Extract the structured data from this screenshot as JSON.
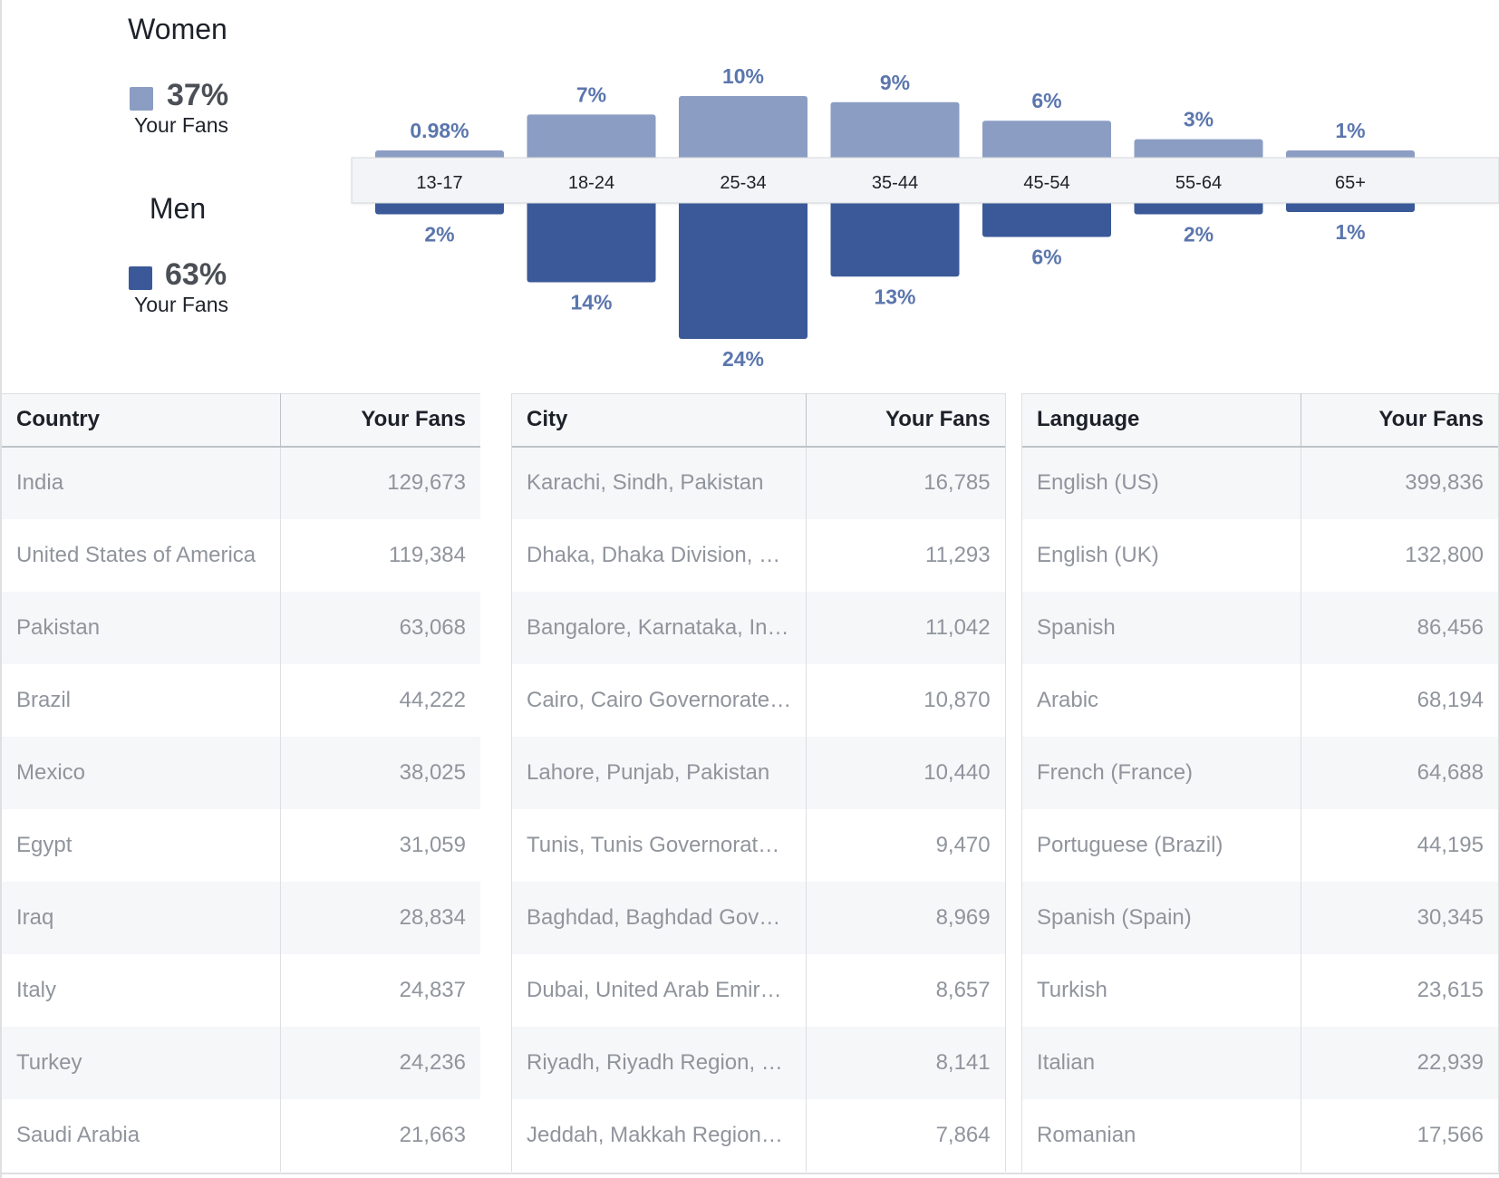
{
  "legend": {
    "women": {
      "title": "Women",
      "pct": "37%",
      "sub": "Your Fans",
      "color": "#8b9dc3"
    },
    "men": {
      "title": "Men",
      "pct": "63%",
      "sub": "Your Fans",
      "color": "#3b5998"
    }
  },
  "chart_data": {
    "type": "bar",
    "categories": [
      "13-17",
      "18-24",
      "25-34",
      "35-44",
      "45-54",
      "55-64",
      "65+"
    ],
    "series": [
      {
        "name": "Women",
        "values": [
          0.98,
          7,
          10,
          9,
          6,
          3,
          1
        ],
        "labels": [
          "0.98%",
          "7%",
          "10%",
          "9%",
          "6%",
          "3%",
          "1%"
        ],
        "color": "#8b9dc3"
      },
      {
        "name": "Men",
        "values": [
          2,
          14,
          24,
          13,
          6,
          2,
          1
        ],
        "labels": [
          "2%",
          "14%",
          "24%",
          "13%",
          "6%",
          "2%",
          "1%"
        ],
        "color": "#3b5998"
      }
    ],
    "label_color": "#5b76ad"
  },
  "tables": {
    "country": {
      "headers": [
        "Country",
        "Your Fans"
      ],
      "rows": [
        [
          "India",
          "129,673"
        ],
        [
          "United States of America",
          "119,384"
        ],
        [
          "Pakistan",
          "63,068"
        ],
        [
          "Brazil",
          "44,222"
        ],
        [
          "Mexico",
          "38,025"
        ],
        [
          "Egypt",
          "31,059"
        ],
        [
          "Iraq",
          "28,834"
        ],
        [
          "Italy",
          "24,837"
        ],
        [
          "Turkey",
          "24,236"
        ],
        [
          "Saudi Arabia",
          "21,663"
        ]
      ]
    },
    "city": {
      "headers": [
        "City",
        "Your Fans"
      ],
      "rows": [
        [
          "Karachi, Sindh, Pakistan",
          "16,785"
        ],
        [
          "Dhaka, Dhaka Division, …",
          "11,293"
        ],
        [
          "Bangalore, Karnataka, In…",
          "11,042"
        ],
        [
          "Cairo, Cairo Governorate…",
          "10,870"
        ],
        [
          "Lahore, Punjab, Pakistan",
          "10,440"
        ],
        [
          "Tunis, Tunis Governorat…",
          "9,470"
        ],
        [
          "Baghdad, Baghdad Gov…",
          "8,969"
        ],
        [
          "Dubai, United Arab Emir…",
          "8,657"
        ],
        [
          "Riyadh, Riyadh Region, …",
          "8,141"
        ],
        [
          "Jeddah, Makkah Region…",
          "7,864"
        ]
      ]
    },
    "language": {
      "headers": [
        "Language",
        "Your Fans"
      ],
      "rows": [
        [
          "English (US)",
          "399,836"
        ],
        [
          "English (UK)",
          "132,800"
        ],
        [
          "Spanish",
          "86,456"
        ],
        [
          "Arabic",
          "68,194"
        ],
        [
          "French (France)",
          "64,688"
        ],
        [
          "Portuguese (Brazil)",
          "44,195"
        ],
        [
          "Spanish (Spain)",
          "30,345"
        ],
        [
          "Turkish",
          "23,615"
        ],
        [
          "Italian",
          "22,939"
        ],
        [
          "Romanian",
          "17,566"
        ]
      ]
    }
  }
}
